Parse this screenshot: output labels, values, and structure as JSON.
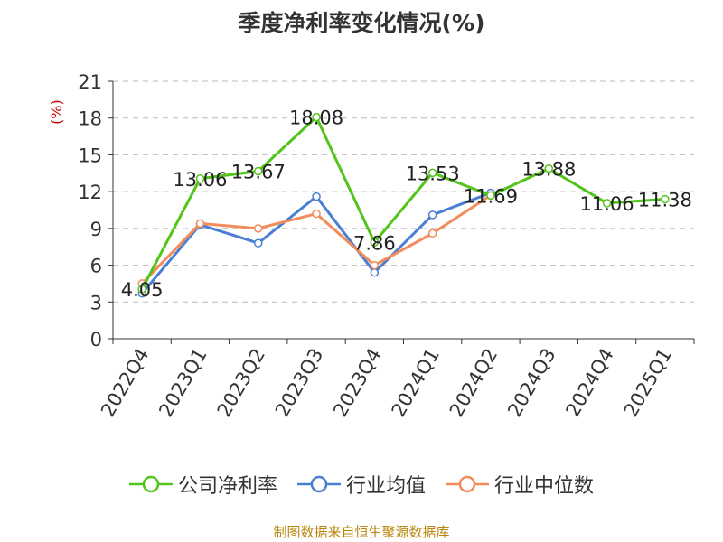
{
  "chart_data": {
    "type": "line",
    "title": "季度净利率变化情况(%)",
    "ylabel": "(%)",
    "categories": [
      "2022Q4",
      "2023Q1",
      "2023Q2",
      "2023Q3",
      "2023Q4",
      "2024Q1",
      "2024Q2",
      "2024Q3",
      "2024Q4",
      "2025Q1"
    ],
    "yticks": [
      "0",
      "3",
      "6",
      "9",
      "12",
      "15",
      "18",
      "21"
    ],
    "ylim": [
      0,
      21
    ],
    "grid": true,
    "legend_position": "bottom",
    "series": [
      {
        "name": "公司净利率",
        "color": "#52c41a",
        "values": [
          4.05,
          13.06,
          13.67,
          18.08,
          7.86,
          13.53,
          11.69,
          13.88,
          11.06,
          11.38
        ],
        "labels": [
          "4.05",
          "13.06",
          "13.67",
          "18.08",
          "7.86",
          "13.53",
          "11.69",
          "13.88",
          "11.06",
          "11.38"
        ]
      },
      {
        "name": "行业均值",
        "color": "#4a7fd4",
        "values": [
          3.7,
          9.3,
          7.8,
          11.6,
          5.4,
          10.1,
          11.9,
          null,
          null,
          null
        ]
      },
      {
        "name": "行业中位数",
        "color": "#f28c5a",
        "values": [
          4.5,
          9.4,
          9.0,
          10.2,
          6.0,
          8.6,
          11.7,
          null,
          null,
          null
        ]
      }
    ]
  },
  "source": "制图数据来自恒生聚源数据库"
}
